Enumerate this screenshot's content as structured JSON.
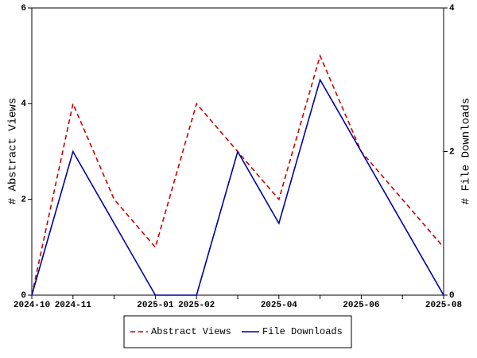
{
  "chart_data": {
    "type": "line",
    "categories": [
      "2024-10",
      "2024-11",
      null,
      "2025-01",
      "2025-02",
      null,
      "2025-04",
      null,
      "2025-06",
      null,
      "2025-08"
    ],
    "y_label": "# Abstract Views",
    "y2_label": "# File Downloads",
    "series": [
      {
        "name": "Abstract Views",
        "color": "#cc0000",
        "dash": true,
        "values": [
          0,
          4,
          2,
          1,
          4,
          3,
          2,
          5,
          3,
          2,
          1
        ]
      },
      {
        "name": "File Downloads",
        "color": "#0000a0",
        "dash": false,
        "axis": "y2",
        "values": [
          0,
          2,
          1,
          0,
          0,
          2,
          1,
          3,
          2,
          1,
          0
        ]
      }
    ],
    "ylim": [
      0,
      6
    ],
    "yticks": [
      0,
      2,
      4,
      6
    ],
    "y2lim": [
      0,
      4
    ],
    "y2ticks": [
      0,
      2,
      4
    ],
    "grid": false
  }
}
